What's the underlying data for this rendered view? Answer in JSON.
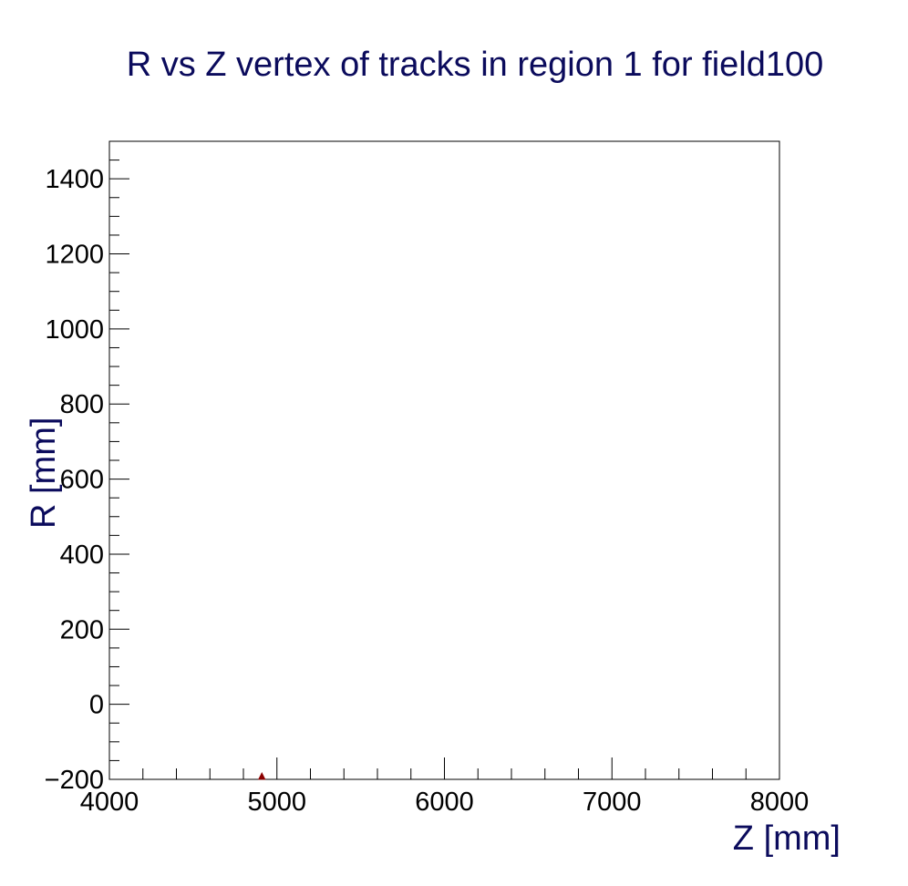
{
  "chart_data": {
    "type": "scatter",
    "title": "R vs Z vertex of tracks in region 1 for field100",
    "xlabel": "Z [mm]",
    "ylabel": "R [mm]",
    "xlim": [
      4000,
      8000
    ],
    "ylim": [
      -200,
      1500
    ],
    "x_ticks": [
      4000,
      5000,
      6000,
      7000,
      8000
    ],
    "x_tick_labels": [
      "4000",
      "5000",
      "6000",
      "7000",
      "8000"
    ],
    "y_ticks": [
      -200,
      0,
      200,
      400,
      600,
      800,
      1000,
      1200,
      1400
    ],
    "y_tick_labels": [
      "−200",
      "0",
      "200",
      "400",
      "600",
      "800",
      "1000",
      "1200",
      "1400"
    ],
    "grid": false,
    "series": [
      {
        "color": "#8b0000",
        "marker": "triangle",
        "points": [
          {
            "x": 4910,
            "y": -195
          }
        ]
      }
    ]
  },
  "colors": {
    "title": "#0b0b5c",
    "axis_title": "#0b0b5c",
    "frame": "#000000",
    "marker": "#8b0000"
  }
}
